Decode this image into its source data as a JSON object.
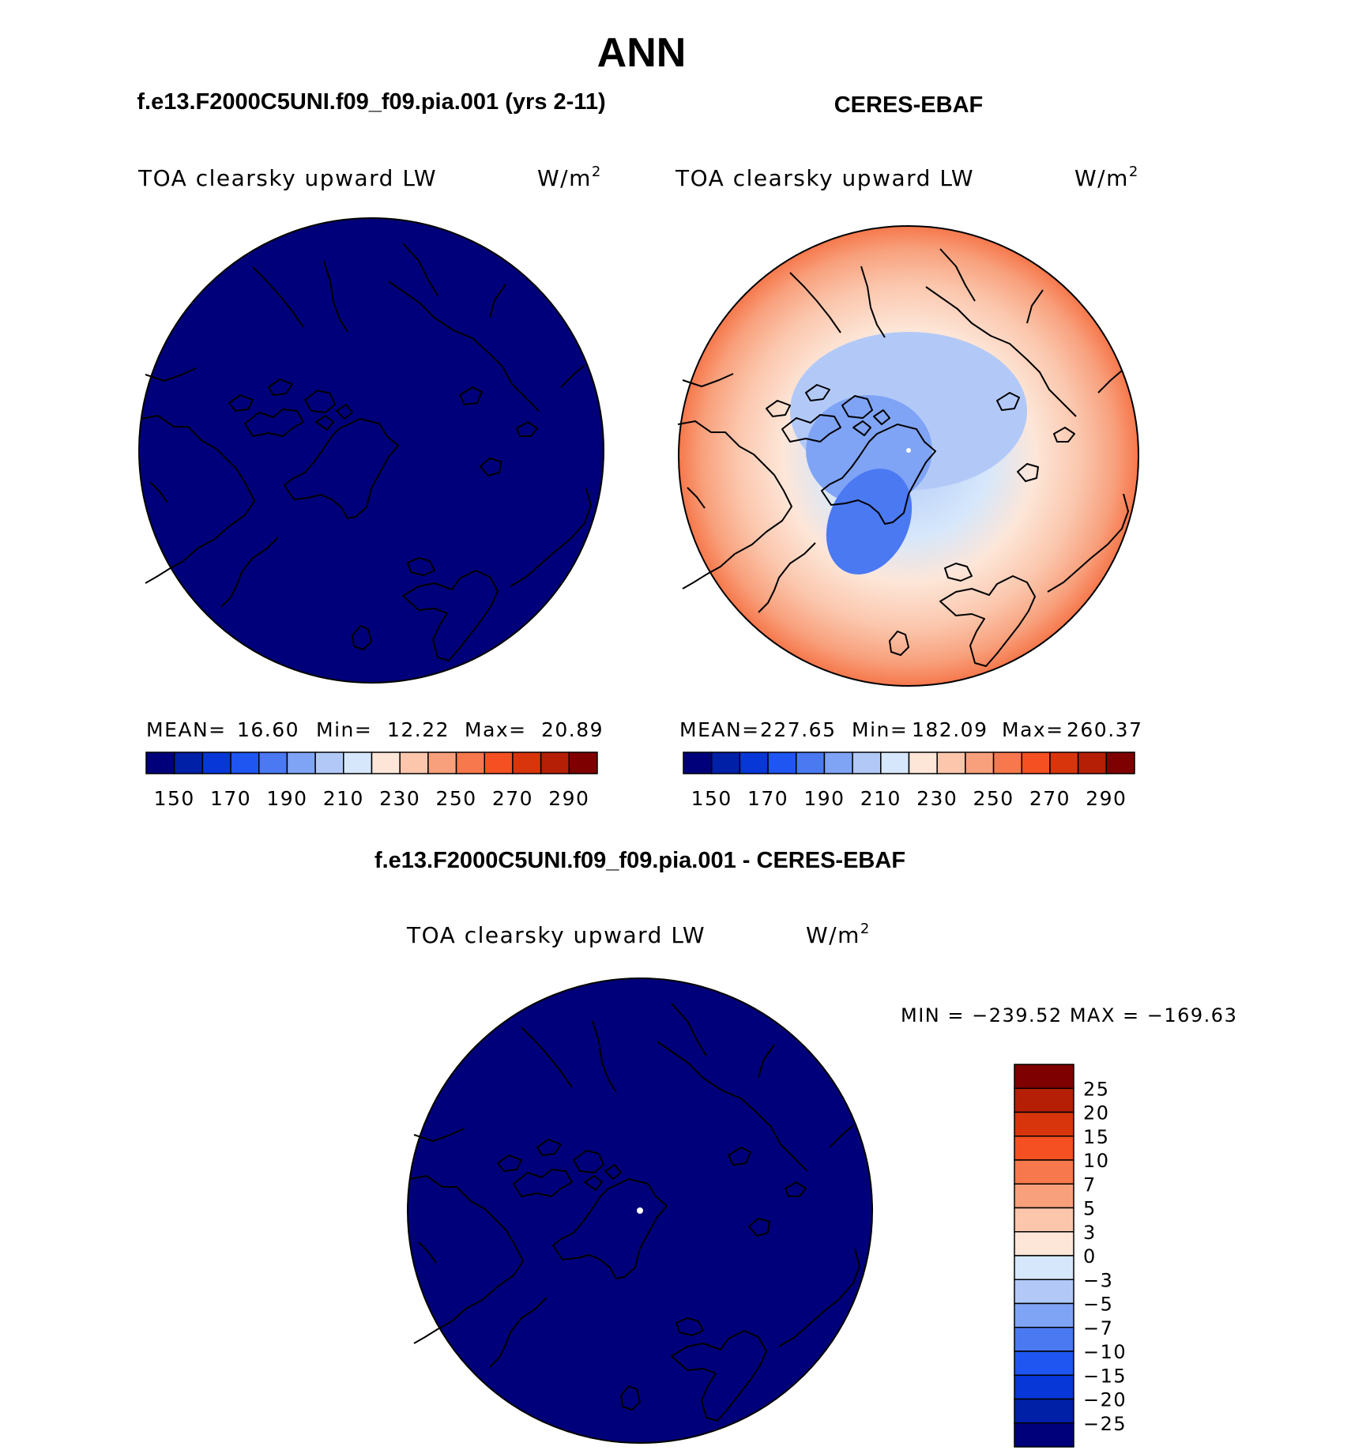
{
  "season": "ANN",
  "units_base": "W/m",
  "units_sup": "2",
  "palette_abs": [
    "#00007a",
    "#0020a8",
    "#0837d8",
    "#1f55f0",
    "#4a79f2",
    "#7fa4f6",
    "#b2c9f8",
    "#d6e7fb",
    "#fde6d8",
    "#fbc6ac",
    "#f8a07c",
    "#f6784c",
    "#f45022",
    "#d8350d",
    "#b51f05",
    "#7f0000"
  ],
  "palette_diff": [
    "#00007a",
    "#0020a8",
    "#0837d8",
    "#1f55f0",
    "#4a79f2",
    "#7fa4f6",
    "#b2c9f8",
    "#d6e7fb",
    "#fde6d8",
    "#fbc6ac",
    "#f8a07c",
    "#f6784c",
    "#f45022",
    "#d8350d",
    "#b51f05",
    "#7f0000"
  ],
  "panels": [
    {
      "heading": "f.e13.F2000C5UNI.f09_f09.pia.001 (yrs 2-11)",
      "variable": "TOA clearsky upward LW",
      "stats": {
        "mean_label": "MEAN=",
        "mean": "16.60",
        "min_label": "Min=",
        "min": "12.22",
        "max_label": "Max=",
        "max": "20.89"
      },
      "ticks": [
        "150",
        "170",
        "190",
        "210",
        "230",
        "250",
        "270",
        "290"
      ]
    },
    {
      "heading": "CERES-EBAF",
      "variable": "TOA clearsky upward LW",
      "stats": {
        "mean_label": "MEAN=",
        "mean": "227.65",
        "min_label": "Min=",
        "min": "182.09",
        "max_label": "Max=",
        "max": "260.37"
      },
      "ticks": [
        "150",
        "170",
        "190",
        "210",
        "230",
        "250",
        "270",
        "290"
      ]
    },
    {
      "heading": "f.e13.F2000C5UNI.f09_f09.pia.001 - CERES-EBAF",
      "variable": "TOA clearsky upward LW",
      "minmax": "MIN = −239.52 MAX = −169.63",
      "ticks": [
        "25",
        "20",
        "15",
        "10",
        "7",
        "5",
        "3",
        "0",
        "−3",
        "−5",
        "−7",
        "−10",
        "−15",
        "−20",
        "−25"
      ]
    }
  ]
}
